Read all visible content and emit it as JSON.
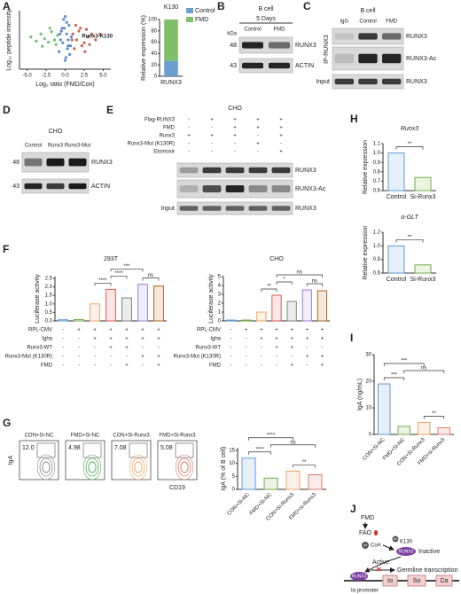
{
  "chart_data": [
    {
      "type": "scatter",
      "panel": "A",
      "x_label": "Log₂ ratio (FMD/Con)",
      "y_label": "Log₁₀ peptide intensity",
      "annotation": "Runx3-K130",
      "xlim": [
        -6,
        6
      ],
      "xticks": [
        {
          "value": -5,
          "label": "-5.0"
        },
        {
          "value": -2.5,
          "label": "-2.5"
        },
        {
          "value": 0,
          "label": "0.0"
        },
        {
          "value": 2.5,
          "label": "2.5"
        },
        {
          "value": 5,
          "label": "5.0"
        }
      ],
      "ylim": [
        0,
        10
      ],
      "series": [
        {
          "color": "#4caf50",
          "x": [
            -4.5,
            -3.8,
            -3.2,
            -2.7,
            -2.2,
            -1.8,
            -1.4,
            -1.0,
            -3.0,
            -2.0,
            -1.2
          ],
          "y": [
            5.5,
            4.8,
            6.0,
            5.2,
            4.6,
            6.4,
            5.0,
            5.8,
            3.9,
            7.0,
            4.2
          ]
        },
        {
          "color": "#3a6fc4",
          "x": [
            -0.8,
            -0.6,
            -0.4,
            -0.2,
            0,
            0.2,
            0.4,
            0.6,
            0.8,
            -0.5,
            0.1,
            0.5,
            -0.3,
            0.3,
            0.0,
            -0.1,
            0.2,
            0.7,
            -0.7,
            0.4
          ],
          "y": [
            3,
            5,
            7,
            8.5,
            9,
            6,
            4,
            2.5,
            5.5,
            6.5,
            2,
            7.5,
            4.5,
            3.5,
            1.5,
            7,
            8,
            4,
            6,
            5
          ]
        },
        {
          "color": "#c0392b",
          "x": [
            1.0,
            1.5,
            2.0,
            2.5,
            3.0,
            3.5,
            1.2,
            1.8,
            2.2,
            2.8,
            4.0,
            1.4,
            2.6,
            3.2,
            0.9,
            4.6
          ],
          "y": [
            6,
            5,
            7,
            4.5,
            5.5,
            6,
            3.5,
            6.5,
            4,
            6.8,
            5,
            7.5,
            3,
            4.2,
            5,
            6
          ]
        }
      ]
    },
    {
      "type": "stacked_bar",
      "title": "K130",
      "y_label": "Relative expression (%)",
      "categories": [
        "RUNX3"
      ],
      "series": [
        {
          "name": "Control",
          "color": "#6a9fd0",
          "values": [
            27
          ]
        },
        {
          "name": "FMD",
          "color": "#7fbf6a",
          "values": [
            73
          ]
        }
      ],
      "ylim": [
        0,
        100
      ],
      "yticks": [
        0,
        20,
        40,
        60,
        80,
        100
      ]
    },
    {
      "type": "bar",
      "panel": "F",
      "title": "293T",
      "y_label": "Luciferase activity",
      "values": [
        0.07,
        0.08,
        1.0,
        1.85,
        1.35,
        2.15,
        2.05
      ],
      "colors": [
        "#5b9bd5",
        "#70ad47",
        "#f4a460",
        "#e05a4f",
        "#7f7f7f",
        "#9b7fd4",
        "#b5651d"
      ],
      "ylim": [
        0,
        2.6
      ],
      "yticks": [
        {
          "value": 0,
          "label": "0.0"
        },
        0.5,
        {
          "value": 1,
          "label": "1.0"
        },
        1.5,
        {
          "value": 2,
          "label": "2.0"
        },
        2.5
      ],
      "significance": [
        {
          "label": "****",
          "bars": [
            2,
            3
          ]
        },
        {
          "label": "****",
          "bars": [
            3,
            4
          ]
        },
        {
          "label": "ns",
          "bars": [
            5,
            6
          ]
        },
        {
          "label": "***",
          "bars": [
            3,
            5
          ]
        }
      ],
      "conditions": [
        {
          "name": "RPL-CMV",
          "signs": [
            "-",
            "+",
            "+",
            "+",
            "+",
            "+",
            "+"
          ]
        },
        {
          "name": "Igha",
          "signs": [
            "-",
            "-",
            "+",
            "+",
            "+",
            "+",
            "+"
          ]
        },
        {
          "name": "Runx3-WT",
          "signs": [
            "-",
            "-",
            "-",
            "+",
            "+",
            "-",
            "-"
          ]
        },
        {
          "name": "Runx3-Mut (K130R)",
          "signs": [
            "-",
            "-",
            "-",
            "-",
            "-",
            "+",
            "+"
          ]
        },
        {
          "name": "FMD",
          "signs": [
            "-",
            "-",
            "-",
            "-",
            "+",
            "-",
            "+"
          ]
        }
      ]
    },
    {
      "type": "bar",
      "title": "CHO",
      "y_label": "Luciferase activity",
      "values": [
        0.1,
        0.1,
        1.0,
        2.9,
        2.2,
        3.5,
        3.4
      ],
      "colors": [
        "#5b9bd5",
        "#70ad47",
        "#f4a460",
        "#e05a4f",
        "#7f7f7f",
        "#9b7fd4",
        "#b5651d"
      ],
      "ylim": [
        0,
        5
      ],
      "yticks": [
        0,
        1,
        2,
        3,
        4,
        5
      ],
      "significance": [
        {
          "label": "**",
          "bars": [
            2,
            3
          ]
        },
        {
          "label": "*",
          "bars": [
            3,
            4
          ]
        },
        {
          "label": "ns",
          "bars": [
            5,
            6
          ]
        },
        {
          "label": "ns",
          "bars": [
            3,
            6
          ]
        }
      ],
      "conditions": [
        {
          "name": "RPL-CMV",
          "signs": [
            "-",
            "+",
            "+",
            "+",
            "+",
            "+",
            "+"
          ]
        },
        {
          "name": "Igha",
          "signs": [
            "-",
            "-",
            "+",
            "+",
            "+",
            "+",
            "+"
          ]
        },
        {
          "name": "Runx3-WT",
          "signs": [
            "-",
            "-",
            "-",
            "+",
            "+",
            "-",
            "-"
          ]
        },
        {
          "name": "Runx3-Mut (K130R)",
          "signs": [
            "-",
            "-",
            "-",
            "-",
            "-",
            "+",
            "+"
          ]
        },
        {
          "name": "FMD",
          "signs": [
            "-",
            "-",
            "-",
            "-",
            "+",
            "-",
            "+"
          ]
        }
      ]
    },
    {
      "type": "bar",
      "y_label": "IgA (% of B cell)",
      "categories": [
        "CON+Si-NC",
        "FMD+Si-NC",
        "CON+Si-Runx3",
        "FMD+si-Runx3"
      ],
      "values": [
        12,
        4.3,
        7,
        5.6
      ],
      "colors": [
        "#5b9bd5",
        "#70ad47",
        "#f4a460",
        "#e07b6a"
      ],
      "ylim": [
        0,
        16
      ],
      "yticks": [
        0,
        5,
        10,
        15
      ],
      "significance": [
        {
          "label": "****",
          "bars": [
            0,
            1
          ]
        },
        {
          "label": "**",
          "bars": [
            2,
            3
          ]
        },
        {
          "label": "ns",
          "bars": [
            1,
            3
          ]
        },
        {
          "label": "****",
          "bars": [
            0,
            2
          ]
        }
      ]
    },
    {
      "type": "bar",
      "panel": "H",
      "title": "Runx3",
      "y_label": "Relative expression",
      "categories": [
        "Control",
        "Si-Runx3"
      ],
      "values": [
        1.0,
        0.74
      ],
      "colors": [
        "#5b9bd5",
        "#70ad47"
      ],
      "ylim": [
        0.6,
        1.1
      ],
      "yticks": [
        0.6,
        0.7,
        0.8,
        0.9,
        {
          "value": 1,
          "label": "1.0"
        },
        1.1
      ],
      "significance": [
        {
          "label": "**",
          "bars": [
            0,
            1
          ]
        }
      ]
    },
    {
      "type": "bar",
      "title": "α-GLT",
      "y_label": "Relative expression",
      "categories": [
        "Control",
        "Si-Runx3"
      ],
      "values": [
        1.0,
        0.72
      ],
      "colors": [
        "#5b9bd5",
        "#70ad47"
      ],
      "ylim": [
        0.6,
        1.2
      ],
      "yticks": [
        0.6,
        0.8,
        {
          "value": 1,
          "label": "1.0"
        },
        1.2
      ],
      "significance": [
        {
          "label": "**",
          "bars": [
            0,
            1
          ]
        }
      ]
    },
    {
      "type": "bar",
      "panel": "I",
      "y_label": "IgA (ng/mL)",
      "categories": [
        "CON+Si-NC",
        "FMD+Si-NC",
        "CON+Si-Runx3",
        "FMD+si-Runx3"
      ],
      "values": [
        19,
        3,
        4.5,
        2.5
      ],
      "colors": [
        "#5b9bd5",
        "#70ad47",
        "#f4a460",
        "#e07b6a"
      ],
      "ylim": [
        0,
        30
      ],
      "yticks": [
        0,
        10,
        20,
        30
      ],
      "significance": [
        {
          "label": "***",
          "bars": [
            0,
            1
          ]
        },
        {
          "label": "**",
          "bars": [
            2,
            3
          ]
        },
        {
          "label": "ns",
          "bars": [
            1,
            3
          ]
        },
        {
          "label": "***",
          "bars": [
            0,
            2
          ]
        }
      ]
    }
  ],
  "blots": [
    {
      "panel": "B",
      "title": "B cell",
      "subtitle": "5 Days",
      "kda_label": "kDa",
      "lanes": [
        "Control",
        "FMD"
      ],
      "rows": [
        {
          "kda": 48,
          "label": "RUNX3"
        },
        {
          "kda": 43,
          "label": "ACTIN"
        }
      ]
    },
    {
      "panel": "C",
      "title": "B cell",
      "group_label": "IP-RUNX3",
      "lanes": [
        "IgG",
        "Control",
        "FMD"
      ],
      "rows": [
        {
          "label": "RUNX3"
        },
        {
          "label": "RUNX3-Ac"
        },
        {
          "side": "Input",
          "label": "RUNX3"
        }
      ]
    },
    {
      "panel": "D",
      "title": "CHO",
      "lanes": [
        "Control",
        "Runx3",
        "Runx3-Mut"
      ],
      "rows": [
        {
          "kda": 48,
          "label": "RUNX3"
        },
        {
          "kda": 43,
          "label": "ACTIN"
        }
      ]
    },
    {
      "panel": "E",
      "title": "CHO",
      "conditions": [
        {
          "name": "Flag-RUNX3",
          "signs": [
            "-",
            "+",
            "+",
            "+",
            "+"
          ]
        },
        {
          "name": "FMD",
          "signs": [
            "-",
            "-",
            "+",
            "+",
            "+"
          ]
        },
        {
          "name": "Runx3",
          "signs": [
            "+",
            "+",
            "+",
            "-",
            "+"
          ]
        },
        {
          "name": "Runx3-Mut (K130R)",
          "signs": [
            "-",
            "-",
            "-",
            "+",
            "-"
          ]
        },
        {
          "name": "Etomoxir",
          "signs": [
            "-",
            "-",
            "-",
            "-",
            "+"
          ]
        }
      ],
      "rows": [
        {
          "label": "RUNX3"
        },
        {
          "label": "RUNX3-Ac"
        },
        {
          "side": "Input",
          "label": "RUNX3"
        }
      ]
    }
  ],
  "flow": {
    "panel": "G",
    "x_label": "CD19",
    "y_label": "IgA",
    "plots": [
      {
        "name": "CON+Si-NC",
        "value": "12.0"
      },
      {
        "name": "FMD+Si-NC",
        "value": "4.98"
      },
      {
        "name": "CON+Si-Runx3",
        "value": "7.08"
      },
      {
        "name": "FMD+Si-Runx3",
        "value": "5.08"
      }
    ]
  },
  "diagram": {
    "panel": "J",
    "stimulus": "FMD",
    "enzyme": "FAO",
    "cofactor": "CoA",
    "acetyl": "Ac",
    "site": "K130",
    "protein": "RUNX3",
    "inactive": "Inactive",
    "active": "Active",
    "output": "Germline transcription",
    "promoter": "Iα promoter",
    "segments": [
      "Iα",
      "Sα",
      "Cα"
    ]
  }
}
